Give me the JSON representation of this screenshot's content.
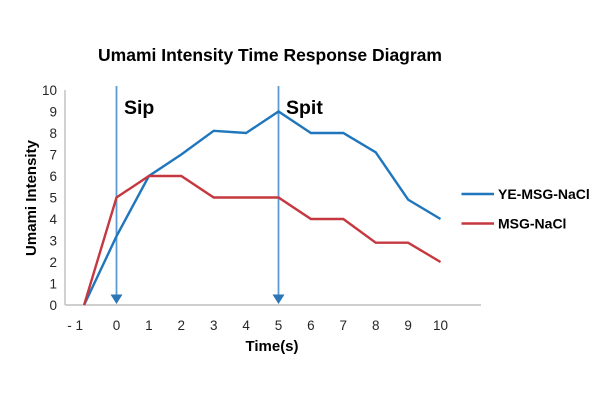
{
  "chart_data": {
    "type": "line",
    "title": "Umami Intensity Time Response Diagram",
    "xlabel": "Time(s)",
    "ylabel": "Umami Intensity",
    "x": [
      -1,
      0,
      1,
      2,
      3,
      4,
      5,
      6,
      7,
      8,
      9,
      10
    ],
    "x_tick_labels": [
      "- 1",
      "0",
      "1",
      "2",
      "3",
      "4",
      "5",
      "6",
      "7",
      "8",
      "9",
      "10"
    ],
    "y_ticks": [
      0,
      1,
      2,
      3,
      4,
      5,
      6,
      7,
      8,
      9,
      10
    ],
    "xlim": [
      -1,
      10
    ],
    "ylim": [
      0,
      10
    ],
    "grid": false,
    "legend_position": "center-right",
    "series": [
      {
        "name": "YE-MSG-NaCl",
        "color": "#1F76BC",
        "values": [
          0,
          3.2,
          6,
          7,
          8.1,
          8,
          9,
          8,
          8,
          7.1,
          4.9,
          4
        ]
      },
      {
        "name": "MSG-NaCl",
        "color": "#C5383F",
        "values": [
          0,
          5,
          6,
          6,
          5,
          5,
          5,
          4,
          4,
          2.9,
          2.9,
          2
        ]
      }
    ],
    "annotations": [
      {
        "label": "Sip",
        "x": 0,
        "type": "vertical-arrow-down"
      },
      {
        "label": "Spit",
        "x": 5,
        "type": "vertical-arrow-down"
      }
    ],
    "colors": {
      "annotation_line": "#5B9BD5",
      "annotation_arrowhead": "#2E75B6",
      "axis": "#BFBFBF",
      "tick_text": "#262626",
      "label_text": "#000000",
      "background": "#FFFFFF"
    }
  }
}
